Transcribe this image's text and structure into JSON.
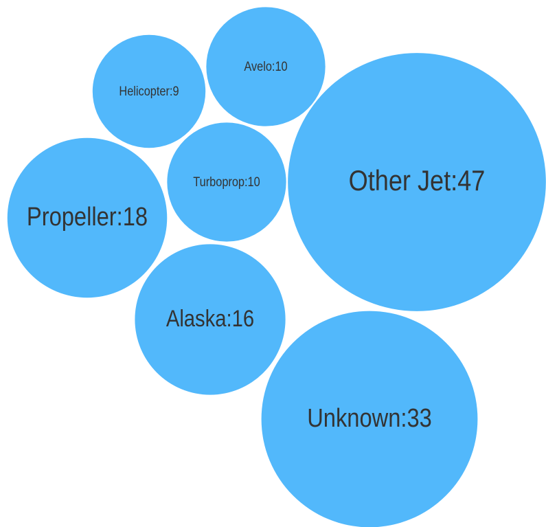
{
  "chart_data": {
    "type": "bubble",
    "values": [
      47,
      33,
      18,
      16,
      10,
      10,
      9
    ],
    "value_labels": [
      "Other Jet:47",
      "Unknown:33",
      "Propeller:18",
      "Alaska:16",
      "Turboprop:10",
      "Avelo:10",
      "Helicopter:9"
    ],
    "color": "#52b8fb"
  }
}
